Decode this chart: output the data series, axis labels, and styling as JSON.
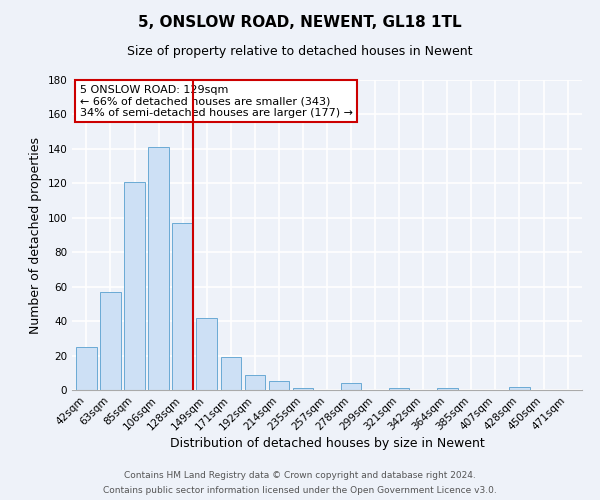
{
  "title": "5, ONSLOW ROAD, NEWENT, GL18 1TL",
  "subtitle": "Size of property relative to detached houses in Newent",
  "xlabel": "Distribution of detached houses by size in Newent",
  "ylabel": "Number of detached properties",
  "bar_labels": [
    "42sqm",
    "63sqm",
    "85sqm",
    "106sqm",
    "128sqm",
    "149sqm",
    "171sqm",
    "192sqm",
    "214sqm",
    "235sqm",
    "257sqm",
    "278sqm",
    "299sqm",
    "321sqm",
    "342sqm",
    "364sqm",
    "385sqm",
    "407sqm",
    "428sqm",
    "450sqm",
    "471sqm"
  ],
  "bar_values": [
    25,
    57,
    121,
    141,
    97,
    42,
    19,
    9,
    5,
    1,
    0,
    4,
    0,
    1,
    0,
    1,
    0,
    0,
    2,
    0,
    0
  ],
  "bar_color": "#cde0f5",
  "bar_edge_color": "#6aaad4",
  "highlight_bar_index": 4,
  "highlight_line_color": "#cc0000",
  "annotation_box_text": "5 ONSLOW ROAD: 129sqm\n← 66% of detached houses are smaller (343)\n34% of semi-detached houses are larger (177) →",
  "annotation_box_facecolor": "white",
  "annotation_box_edgecolor": "#cc0000",
  "ylim": [
    0,
    180
  ],
  "yticks": [
    0,
    20,
    40,
    60,
    80,
    100,
    120,
    140,
    160,
    180
  ],
  "footer_line1": "Contains HM Land Registry data © Crown copyright and database right 2024.",
  "footer_line2": "Contains public sector information licensed under the Open Government Licence v3.0.",
  "background_color": "#eef2f9",
  "grid_color": "#ffffff",
  "title_fontsize": 11,
  "subtitle_fontsize": 9,
  "axis_label_fontsize": 9,
  "tick_fontsize": 7.5,
  "footer_fontsize": 6.5,
  "annotation_fontsize": 8
}
